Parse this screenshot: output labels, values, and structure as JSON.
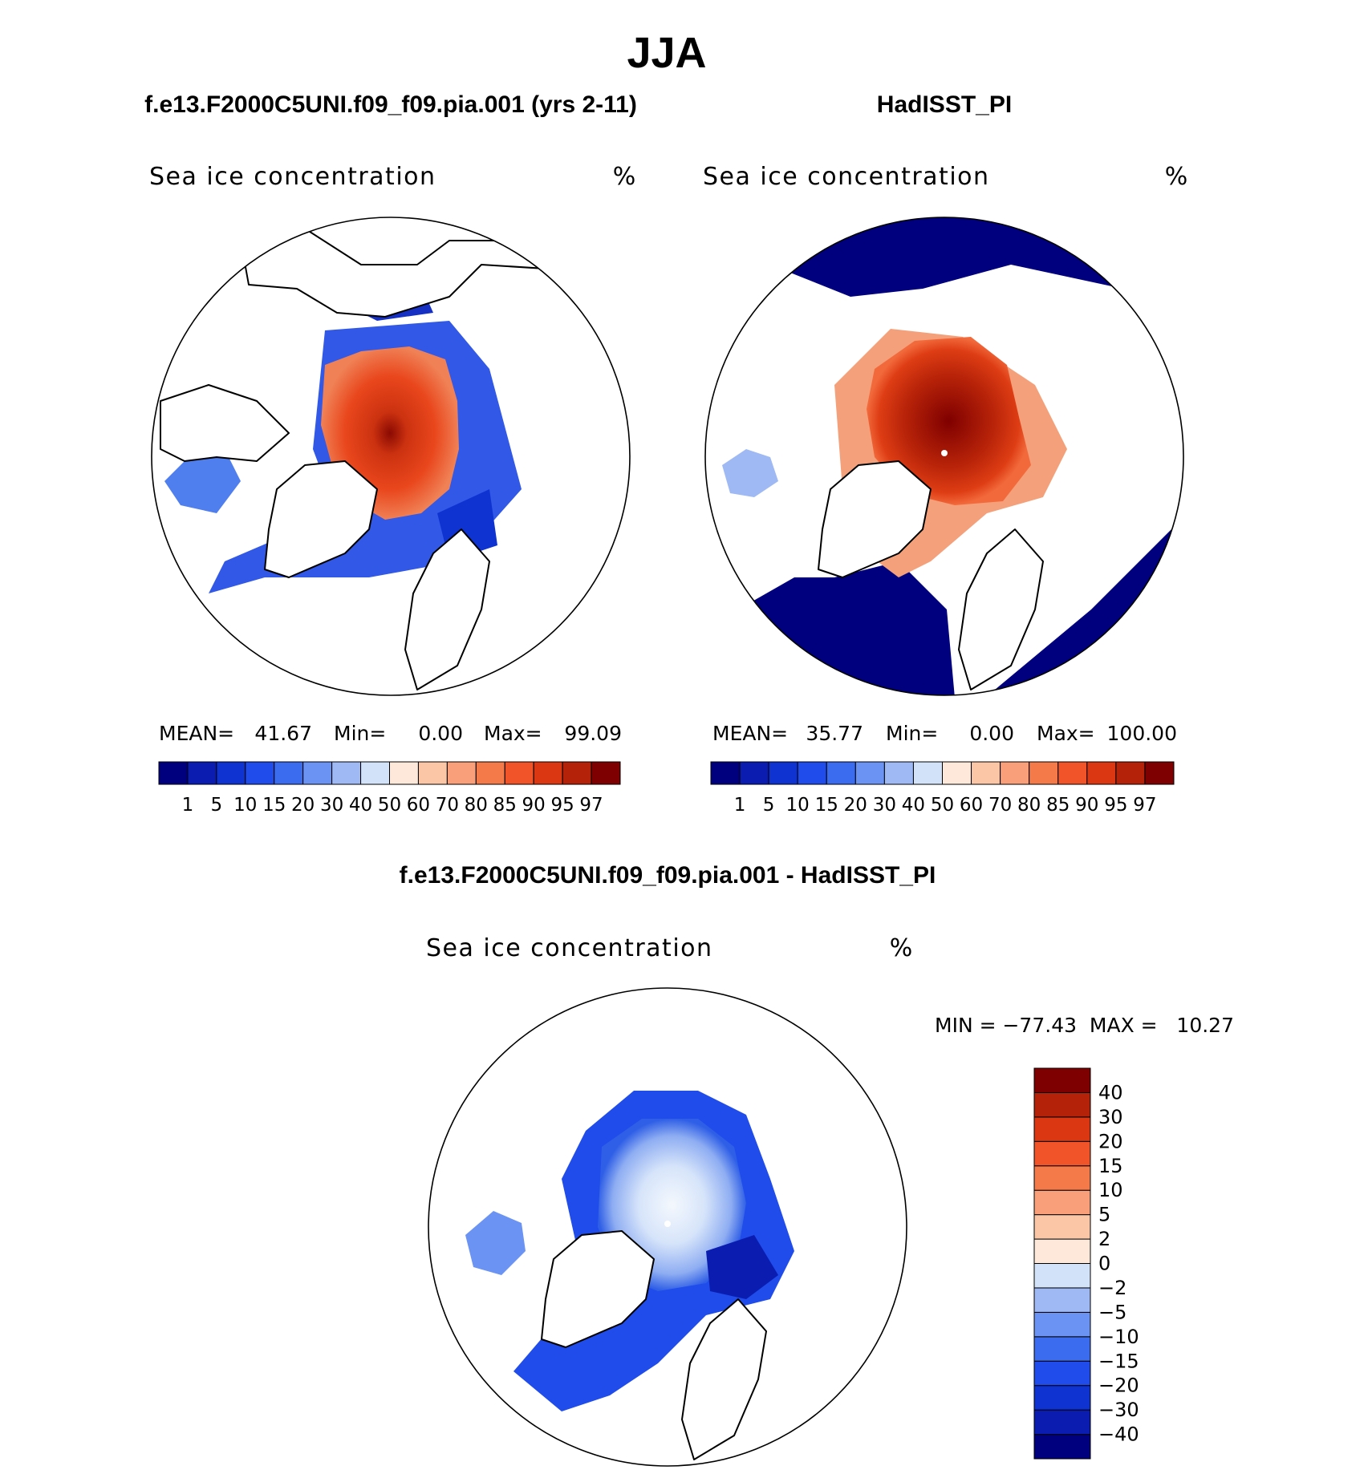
{
  "page_title": "JJA",
  "panels": {
    "model": {
      "heading": "f.e13.F2000C5UNI.f09_f09.pia.001 (yrs 2-11)",
      "variable": "Sea ice concentration",
      "units": "%",
      "stats": {
        "mean_label": "MEAN=",
        "mean": "41.67",
        "min_label": "Min=",
        "min": "0.00",
        "max_label": "Max=",
        "max": "99.09"
      }
    },
    "obs": {
      "heading": "HadISST_PI",
      "variable": "Sea ice concentration",
      "units": "%",
      "stats": {
        "mean_label": "MEAN=",
        "mean": "35.77",
        "min_label": "Min=",
        "min": "0.00",
        "max_label": "Max=",
        "max": "100.00"
      }
    },
    "diff": {
      "heading": "f.e13.F2000C5UNI.f09_f09.pia.001 - HadISST_PI",
      "variable": "Sea ice concentration",
      "units": "%",
      "stats_text": "MIN = −77.43  MAX =   10.27"
    }
  },
  "chart_data": [
    {
      "type": "heatmap",
      "projection": "north-polar-stereographic",
      "title": "f.e13.F2000C5UNI.f09_f09.pia.001 (yrs 2-11)",
      "subtitle": "Sea ice concentration",
      "units": "%",
      "mean": 41.67,
      "min": 0.0,
      "max": 99.09,
      "levels": [
        1,
        5,
        10,
        15,
        20,
        30,
        40,
        50,
        60,
        70,
        80,
        85,
        90,
        95,
        97
      ],
      "level_labels": [
        "1",
        "5",
        "10",
        "15",
        "20",
        "30",
        "40",
        "50",
        "60",
        "70",
        "80",
        "85",
        "90",
        "95",
        "97"
      ],
      "colors": [
        "#00007f",
        "#0a1db0",
        "#0f33d1",
        "#1f4cea",
        "#3b6cf0",
        "#6b93f3",
        "#9fb9f4",
        "#d2e3f9",
        "#fde8d9",
        "#fbc6a6",
        "#f9a07a",
        "#f57a4a",
        "#f2542a",
        "#db3712",
        "#b32209",
        "#7f0000"
      ],
      "legend": "bottom"
    },
    {
      "type": "heatmap",
      "projection": "north-polar-stereographic",
      "title": "HadISST_PI",
      "subtitle": "Sea ice concentration",
      "units": "%",
      "mean": 35.77,
      "min": 0.0,
      "max": 100.0,
      "levels": [
        1,
        5,
        10,
        15,
        20,
        30,
        40,
        50,
        60,
        70,
        80,
        85,
        90,
        95,
        97
      ],
      "level_labels": [
        "1",
        "5",
        "10",
        "15",
        "20",
        "30",
        "40",
        "50",
        "60",
        "70",
        "80",
        "85",
        "90",
        "95",
        "97"
      ],
      "colors": [
        "#00007f",
        "#0a1db0",
        "#0f33d1",
        "#1f4cea",
        "#3b6cf0",
        "#6b93f3",
        "#9fb9f4",
        "#d2e3f9",
        "#fde8d9",
        "#fbc6a6",
        "#f9a07a",
        "#f57a4a",
        "#f2542a",
        "#db3712",
        "#b32209",
        "#7f0000"
      ],
      "legend": "bottom"
    },
    {
      "type": "heatmap",
      "projection": "north-polar-stereographic",
      "title": "f.e13.F2000C5UNI.f09_f09.pia.001 - HadISST_PI",
      "subtitle": "Sea ice concentration",
      "units": "%",
      "min": -77.43,
      "max": 10.27,
      "levels": [
        -40,
        -30,
        -20,
        -15,
        -10,
        -5,
        -2,
        0,
        2,
        5,
        10,
        15,
        20,
        30,
        40
      ],
      "level_labels": [
        "−40",
        "−30",
        "−20",
        "−15",
        "−10",
        "−5",
        "−2",
        "0",
        "2",
        "5",
        "10",
        "15",
        "20",
        "30",
        "40"
      ],
      "colors": [
        "#00007f",
        "#0a1db0",
        "#0f33d1",
        "#1f4cea",
        "#3b6cf0",
        "#6b93f3",
        "#9fb9f4",
        "#d2e3f9",
        "#fde8d9",
        "#fbc6a6",
        "#f9a07a",
        "#f57a4a",
        "#f2542a",
        "#db3712",
        "#b32209",
        "#7f0000"
      ],
      "legend": "right"
    }
  ]
}
